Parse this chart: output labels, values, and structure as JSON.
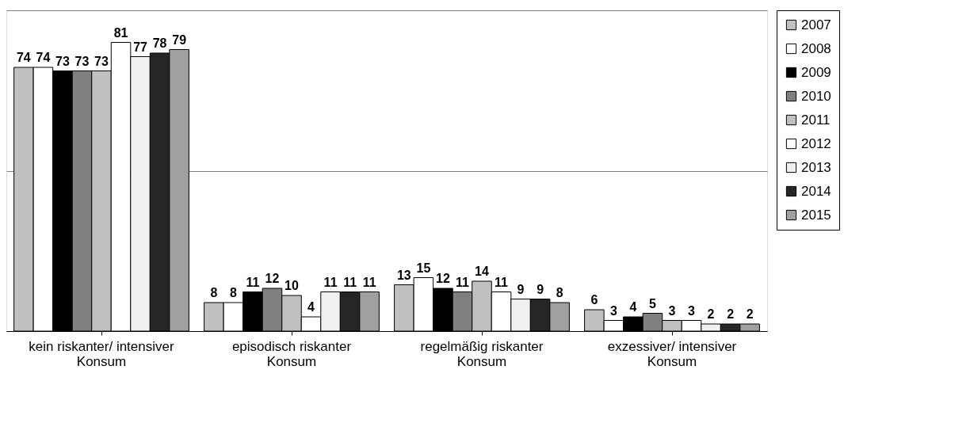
{
  "chart_data": {
    "type": "bar",
    "categories": [
      "kein riskanter/ intensiver\nKonsum",
      "episodisch riskanter\nKonsum",
      "regelmäßig riskanter\nKonsum",
      "exzessiver/ intensiver\nKonsum"
    ],
    "series": [
      {
        "name": "2007",
        "color": "#c0c0c0",
        "values": [
          74,
          8,
          13,
          6
        ]
      },
      {
        "name": "2008",
        "color": "#ffffff",
        "values": [
          74,
          8,
          15,
          3
        ]
      },
      {
        "name": "2009",
        "color": "#000000",
        "values": [
          73,
          11,
          12,
          4
        ]
      },
      {
        "name": "2010",
        "color": "#808080",
        "values": [
          73,
          12,
          11,
          5
        ]
      },
      {
        "name": "2011",
        "color": "#c0c0c0",
        "values": [
          73,
          10,
          14,
          3
        ]
      },
      {
        "name": "2012",
        "color": "#ffffff",
        "values": [
          81,
          4,
          11,
          3
        ]
      },
      {
        "name": "2013",
        "color": "#f0f0f0",
        "values": [
          77,
          11,
          9,
          2
        ]
      },
      {
        "name": "2014",
        "color": "#262626",
        "values": [
          78,
          11,
          9,
          2
        ]
      },
      {
        "name": "2015",
        "color": "#a0a0a0",
        "values": [
          79,
          11,
          8,
          2
        ]
      }
    ],
    "ylim": [
      0,
      90
    ],
    "yticks": [
      {
        "value": 0,
        "label": null
      },
      {
        "value": 45,
        "label": null
      },
      {
        "value": 90,
        "label": null
      }
    ],
    "grid": "y",
    "tick_labels": "x",
    "data_labels": true,
    "legend": "right"
  }
}
